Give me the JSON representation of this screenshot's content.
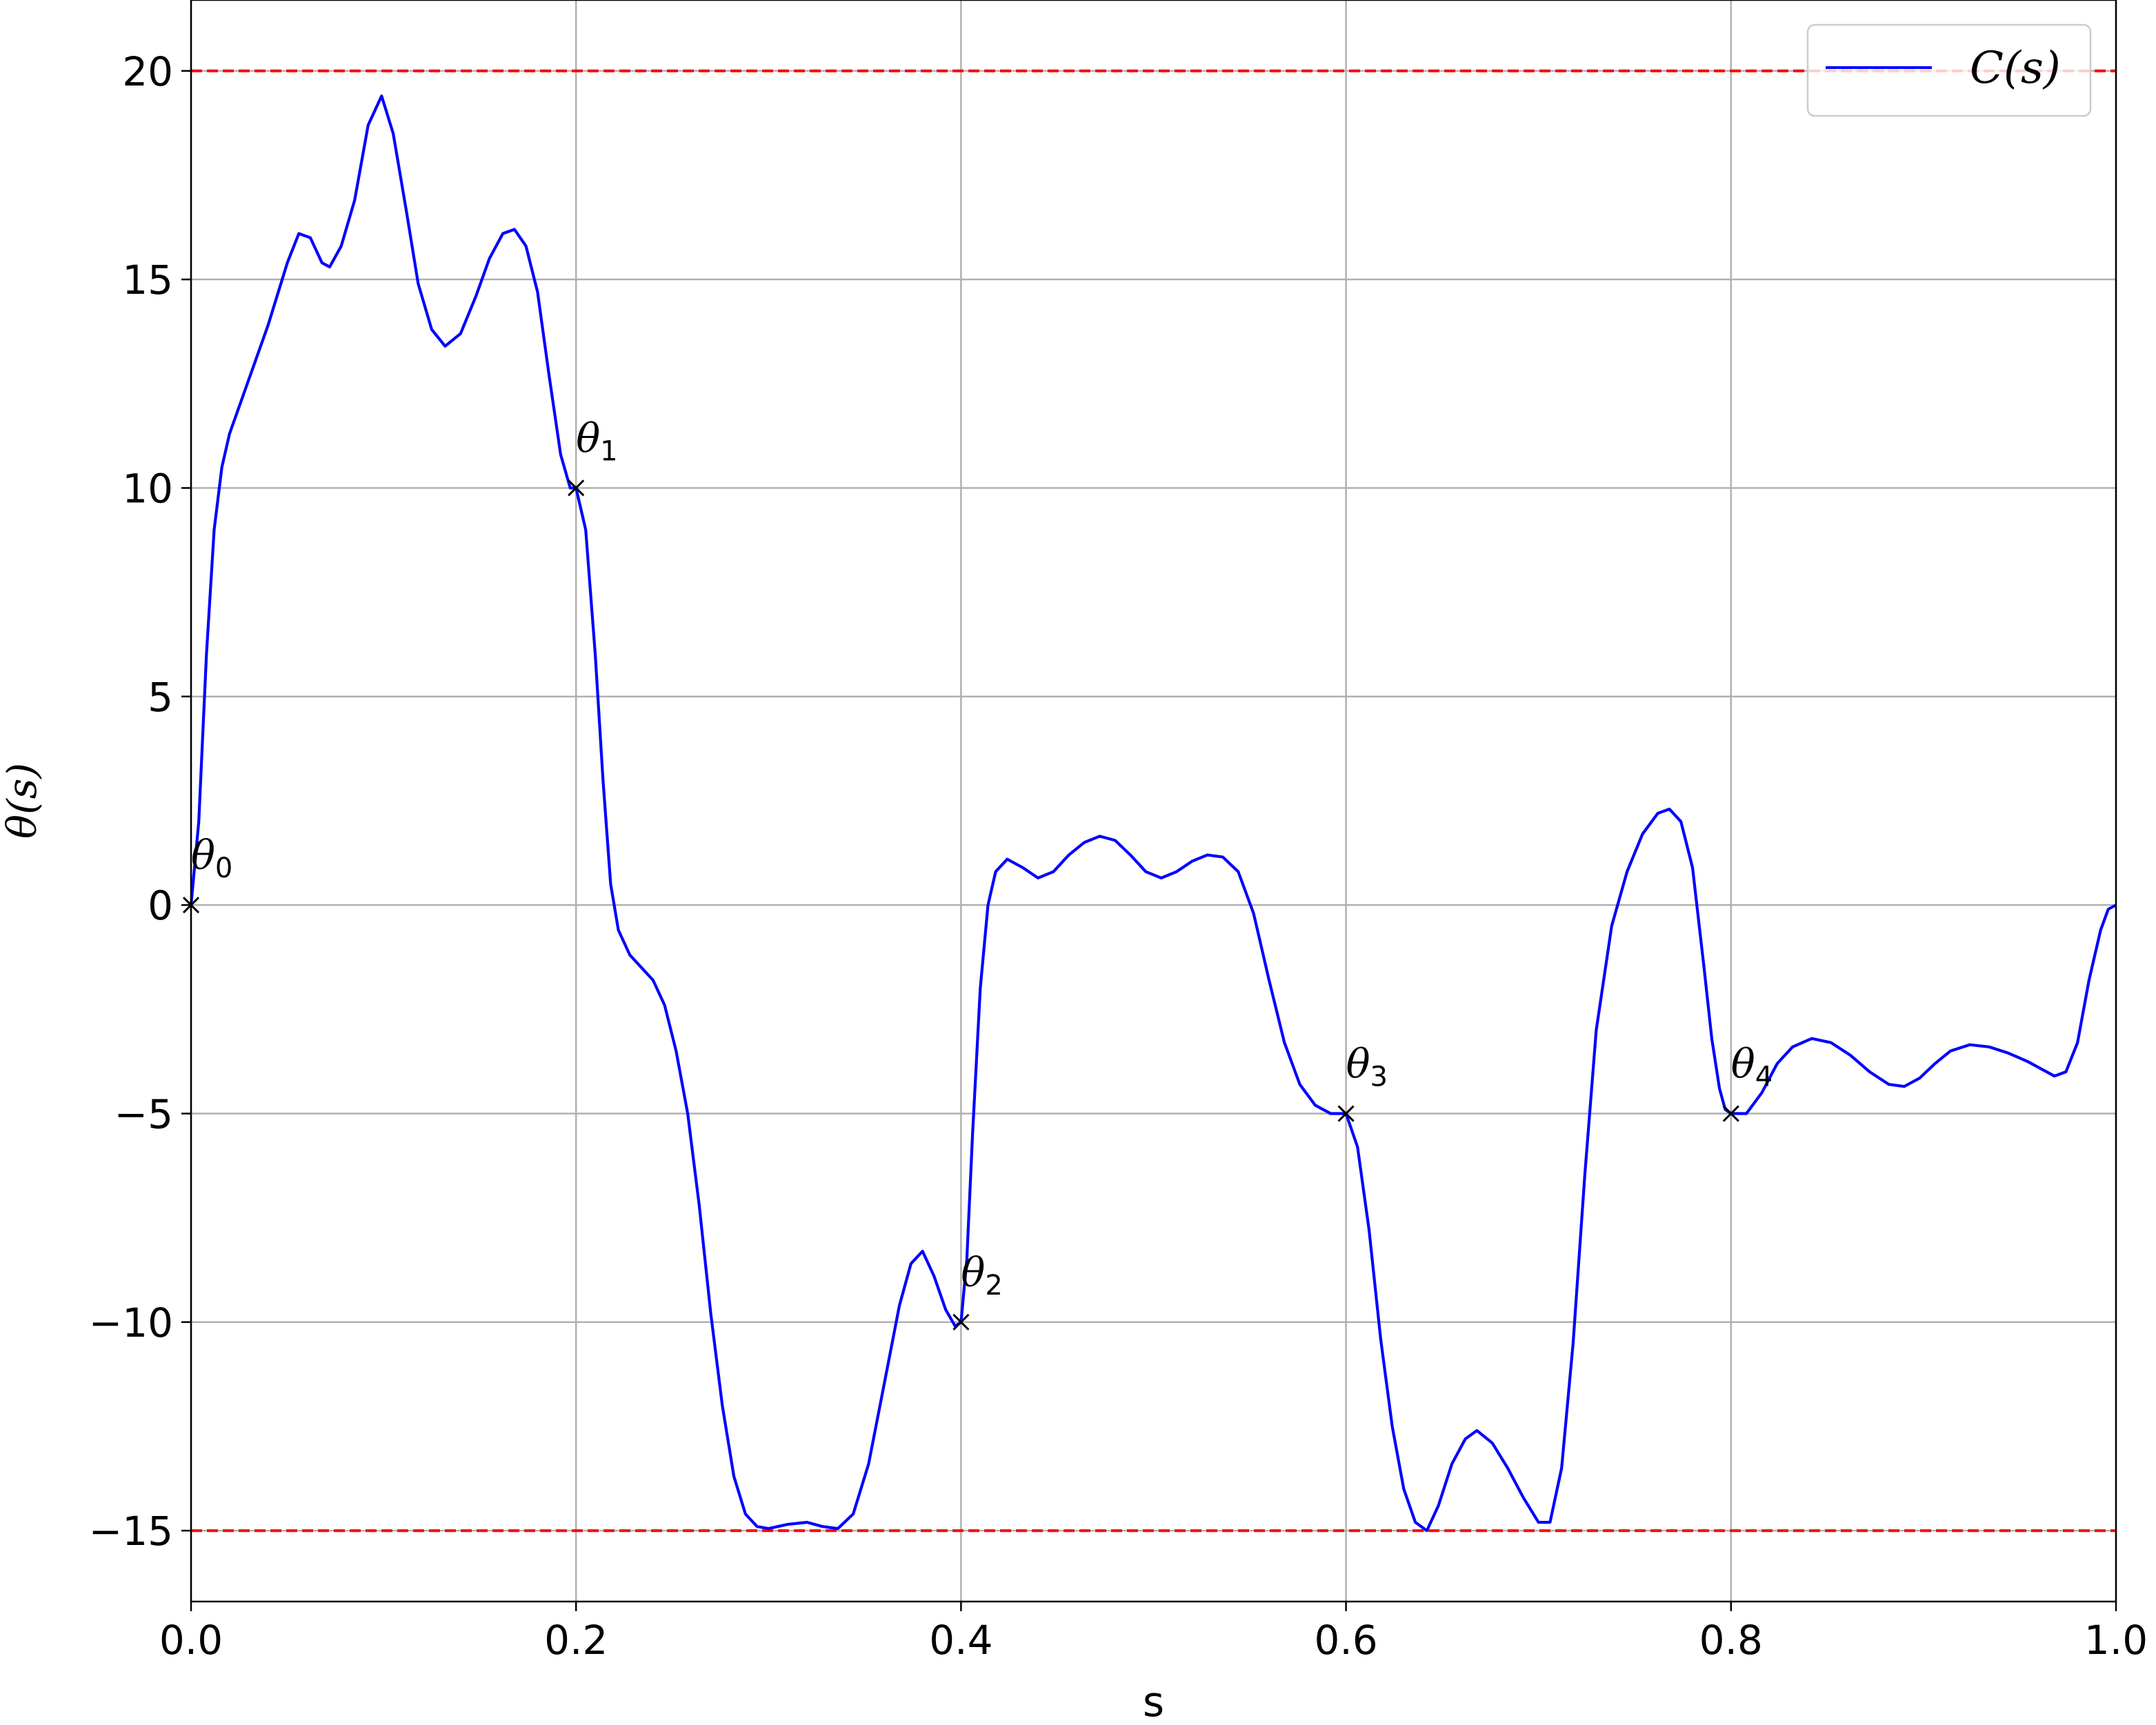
{
  "chart_data": {
    "type": "line",
    "title": "",
    "xlabel": "s",
    "ylabel": "θ(s)",
    "xlim": [
      0.0,
      1.0
    ],
    "ylim": [
      -16.7,
      21.7
    ],
    "grid": true,
    "legend": {
      "placement": "top-right",
      "entries": [
        "C(s)"
      ]
    },
    "x_ticks": [
      {
        "value": 0.0,
        "label": "0.0"
      },
      {
        "value": 0.2,
        "label": "0.2"
      },
      {
        "value": 0.4,
        "label": "0.4"
      },
      {
        "value": 0.6,
        "label": "0.6"
      },
      {
        "value": 0.8,
        "label": "0.8"
      },
      {
        "value": 1.0,
        "label": "1.0"
      }
    ],
    "y_ticks": [
      {
        "value": 20,
        "label": "20"
      },
      {
        "value": 15,
        "label": "15"
      },
      {
        "value": 10,
        "label": "10"
      },
      {
        "value": 5,
        "label": "5"
      },
      {
        "value": 0,
        "label": "0"
      },
      {
        "value": -5,
        "label": "−5"
      },
      {
        "value": -10,
        "label": "−10"
      },
      {
        "value": -15,
        "label": "−15"
      }
    ],
    "bounds": [
      {
        "y": 20,
        "color": "#ff0000",
        "style": "dashed"
      },
      {
        "y": -15,
        "color": "#ff0000",
        "style": "dashed"
      }
    ],
    "series": [
      {
        "name": "C(s)",
        "color": "#0000ff",
        "points": [
          [
            0.0,
            0.0
          ],
          [
            0.004,
            2.0
          ],
          [
            0.008,
            6.0
          ],
          [
            0.012,
            9.0
          ],
          [
            0.016,
            10.5
          ],
          [
            0.02,
            11.3
          ],
          [
            0.03,
            12.6
          ],
          [
            0.04,
            13.9
          ],
          [
            0.05,
            15.4
          ],
          [
            0.056,
            16.1
          ],
          [
            0.062,
            16.0
          ],
          [
            0.068,
            15.4
          ],
          [
            0.072,
            15.3
          ],
          [
            0.078,
            15.8
          ],
          [
            0.085,
            16.9
          ],
          [
            0.092,
            18.7
          ],
          [
            0.099,
            19.4
          ],
          [
            0.105,
            18.5
          ],
          [
            0.112,
            16.6
          ],
          [
            0.118,
            14.9
          ],
          [
            0.125,
            13.8
          ],
          [
            0.132,
            13.4
          ],
          [
            0.14,
            13.7
          ],
          [
            0.148,
            14.6
          ],
          [
            0.155,
            15.5
          ],
          [
            0.162,
            16.1
          ],
          [
            0.168,
            16.2
          ],
          [
            0.174,
            15.8
          ],
          [
            0.18,
            14.7
          ],
          [
            0.186,
            12.7
          ],
          [
            0.192,
            10.8
          ],
          [
            0.197,
            10.0
          ],
          [
            0.2,
            10.0
          ],
          [
            0.205,
            9.0
          ],
          [
            0.21,
            6.0
          ],
          [
            0.214,
            3.0
          ],
          [
            0.218,
            0.5
          ],
          [
            0.222,
            -0.6
          ],
          [
            0.228,
            -1.2
          ],
          [
            0.234,
            -1.5
          ],
          [
            0.24,
            -1.8
          ],
          [
            0.246,
            -2.4
          ],
          [
            0.252,
            -3.5
          ],
          [
            0.258,
            -5.0
          ],
          [
            0.264,
            -7.2
          ],
          [
            0.27,
            -9.8
          ],
          [
            0.276,
            -12.0
          ],
          [
            0.282,
            -13.7
          ],
          [
            0.288,
            -14.6
          ],
          [
            0.294,
            -14.9
          ],
          [
            0.3,
            -14.95
          ],
          [
            0.31,
            -14.85
          ],
          [
            0.32,
            -14.8
          ],
          [
            0.328,
            -14.9
          ],
          [
            0.336,
            -14.95
          ],
          [
            0.344,
            -14.6
          ],
          [
            0.352,
            -13.4
          ],
          [
            0.36,
            -11.5
          ],
          [
            0.368,
            -9.6
          ],
          [
            0.374,
            -8.6
          ],
          [
            0.38,
            -8.3
          ],
          [
            0.386,
            -8.9
          ],
          [
            0.392,
            -9.7
          ],
          [
            0.397,
            -10.1
          ],
          [
            0.4,
            -10.0
          ],
          [
            0.403,
            -8.5
          ],
          [
            0.406,
            -5.5
          ],
          [
            0.41,
            -2.0
          ],
          [
            0.414,
            0.0
          ],
          [
            0.418,
            0.8
          ],
          [
            0.424,
            1.1
          ],
          [
            0.432,
            0.9
          ],
          [
            0.44,
            0.65
          ],
          [
            0.448,
            0.8
          ],
          [
            0.456,
            1.2
          ],
          [
            0.464,
            1.5
          ],
          [
            0.472,
            1.65
          ],
          [
            0.48,
            1.55
          ],
          [
            0.488,
            1.2
          ],
          [
            0.496,
            0.8
          ],
          [
            0.504,
            0.65
          ],
          [
            0.512,
            0.8
          ],
          [
            0.52,
            1.05
          ],
          [
            0.528,
            1.2
          ],
          [
            0.536,
            1.15
          ],
          [
            0.544,
            0.8
          ],
          [
            0.552,
            -0.2
          ],
          [
            0.56,
            -1.8
          ],
          [
            0.568,
            -3.3
          ],
          [
            0.576,
            -4.3
          ],
          [
            0.584,
            -4.8
          ],
          [
            0.592,
            -5.0
          ],
          [
            0.6,
            -5.0
          ],
          [
            0.606,
            -5.8
          ],
          [
            0.612,
            -7.8
          ],
          [
            0.618,
            -10.4
          ],
          [
            0.624,
            -12.5
          ],
          [
            0.63,
            -14.0
          ],
          [
            0.636,
            -14.8
          ],
          [
            0.642,
            -15.0
          ],
          [
            0.648,
            -14.4
          ],
          [
            0.655,
            -13.4
          ],
          [
            0.662,
            -12.8
          ],
          [
            0.668,
            -12.6
          ],
          [
            0.676,
            -12.9
          ],
          [
            0.684,
            -13.5
          ],
          [
            0.692,
            -14.2
          ],
          [
            0.7,
            -14.8
          ],
          [
            0.706,
            -14.8
          ],
          [
            0.712,
            -13.5
          ],
          [
            0.718,
            -10.5
          ],
          [
            0.724,
            -6.5
          ],
          [
            0.73,
            -3.0
          ],
          [
            0.738,
            -0.5
          ],
          [
            0.746,
            0.8
          ],
          [
            0.754,
            1.7
          ],
          [
            0.762,
            2.2
          ],
          [
            0.768,
            2.3
          ],
          [
            0.774,
            2.0
          ],
          [
            0.78,
            0.9
          ],
          [
            0.786,
            -1.5
          ],
          [
            0.79,
            -3.2
          ],
          [
            0.794,
            -4.4
          ],
          [
            0.797,
            -4.9
          ],
          [
            0.8,
            -5.0
          ],
          [
            0.808,
            -5.0
          ],
          [
            0.816,
            -4.5
          ],
          [
            0.824,
            -3.8
          ],
          [
            0.832,
            -3.4
          ],
          [
            0.842,
            -3.2
          ],
          [
            0.852,
            -3.3
          ],
          [
            0.862,
            -3.6
          ],
          [
            0.872,
            -4.0
          ],
          [
            0.882,
            -4.3
          ],
          [
            0.89,
            -4.35
          ],
          [
            0.898,
            -4.15
          ],
          [
            0.906,
            -3.8
          ],
          [
            0.914,
            -3.5
          ],
          [
            0.924,
            -3.35
          ],
          [
            0.934,
            -3.4
          ],
          [
            0.944,
            -3.55
          ],
          [
            0.954,
            -3.75
          ],
          [
            0.962,
            -3.95
          ],
          [
            0.968,
            -4.1
          ],
          [
            0.974,
            -4.0
          ],
          [
            0.98,
            -3.3
          ],
          [
            0.986,
            -1.8
          ],
          [
            0.992,
            -0.6
          ],
          [
            0.996,
            -0.1
          ],
          [
            1.0,
            0.0
          ]
        ]
      }
    ],
    "markers": [
      {
        "x": 0.0,
        "y": 0,
        "label": "θ",
        "sub": "0"
      },
      {
        "x": 0.2,
        "y": 10,
        "label": "θ",
        "sub": "1"
      },
      {
        "x": 0.4,
        "y": -10,
        "label": "θ",
        "sub": "2"
      },
      {
        "x": 0.6,
        "y": -5,
        "label": "θ",
        "sub": "3"
      },
      {
        "x": 0.8,
        "y": -5,
        "label": "θ",
        "sub": "4"
      }
    ]
  }
}
